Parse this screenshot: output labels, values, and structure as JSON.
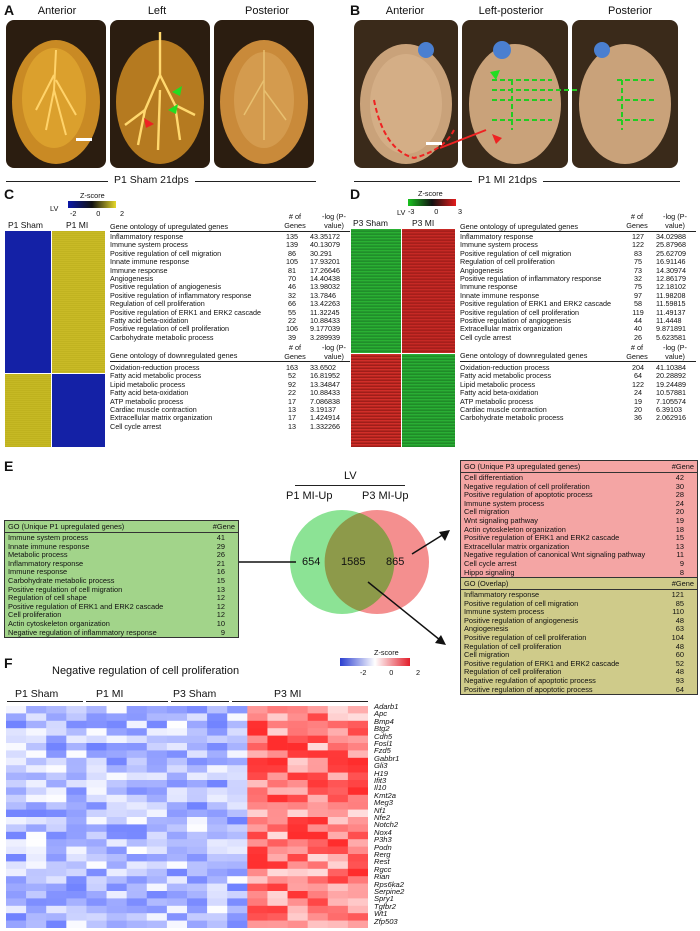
{
  "panel_letters": [
    "A",
    "B",
    "C",
    "D",
    "E",
    "F"
  ],
  "panelA": {
    "views": [
      "Anterior",
      "Left",
      "Posterior"
    ],
    "caption": "P1 Sham 21dps"
  },
  "panelB": {
    "views": [
      "Anterior",
      "Left-posterior",
      "Posterior"
    ],
    "caption": "P1 MI 21dps"
  },
  "panelC": {
    "col_labels": [
      "P1 Sham",
      "P1 MI"
    ],
    "lv": "LV",
    "zscore_title": "Z-score",
    "zscore_ticks": [
      "-2",
      "0",
      "2"
    ],
    "up_header": "Gene ontology of upregulated genes",
    "down_header": "Gene ontology of downregulated genes",
    "n_header": "# of Genes",
    "p_header": "-log (P-value)",
    "up": [
      [
        "Inflammatory response",
        "135",
        "43.35172"
      ],
      [
        "Immune system process",
        "139",
        "40.13079"
      ],
      [
        "Positive regulation of cell migration",
        "86",
        "30.291"
      ],
      [
        "Innate immune response",
        "105",
        "17.93201"
      ],
      [
        "Immune response",
        "81",
        "17.26646"
      ],
      [
        "Angiogenesis",
        "70",
        "14.40438"
      ],
      [
        "Positive regulation of angiogenesis",
        "46",
        "13.98032"
      ],
      [
        "Positive regulation of inflammatory response",
        "32",
        "13.7846"
      ],
      [
        "Regulation of cell proliferation",
        "66",
        "13.42263"
      ],
      [
        "Positive regulation of ERK1 and ERK2 cascade",
        "55",
        "11.32245"
      ],
      [
        "Fatty acid beta-oxidation",
        "22",
        "10.88433"
      ],
      [
        "Positive regulation of cell proliferation",
        "106",
        "9.177039"
      ],
      [
        "Carbohydrate metabolic process",
        "39",
        "3.289939"
      ]
    ],
    "down": [
      [
        "Oxidation-reduction process",
        "163",
        "33.6502"
      ],
      [
        "Fatty acid metabolic process",
        "52",
        "16.81952"
      ],
      [
        "Lipid metabolic process",
        "92",
        "13.34847"
      ],
      [
        "Fatty acid beta-oxidation",
        "22",
        "10.88433"
      ],
      [
        "ATP metabolic process",
        "17",
        "7.086838"
      ],
      [
        "Cardiac muscle contraction",
        "13",
        "3.19137"
      ],
      [
        "Extracellular matrix organization",
        "17",
        "1.424914"
      ],
      [
        "Cell cycle arrest",
        "13",
        "1.332266"
      ]
    ]
  },
  "panelD": {
    "col_labels": [
      "P3 Sham",
      "P3 MI"
    ],
    "lv": "LV",
    "zscore_title": "Z-score",
    "zscore_ticks": [
      "-3",
      "0",
      "3"
    ],
    "up_header": "Gene ontology of upregulated genes",
    "down_header": "Gene ontology of downregulated genes",
    "n_header": "# of Genes",
    "p_header": "-log (P-value)",
    "up": [
      [
        "Inflammatory response",
        "127",
        "34.02988"
      ],
      [
        "Immune system process",
        "122",
        "25.87968"
      ],
      [
        "Positive regulation of cell migration",
        "83",
        "25.62709"
      ],
      [
        "Regulation of cell proliferation",
        "75",
        "16.91146"
      ],
      [
        "Angiogenesis",
        "73",
        "14.30974"
      ],
      [
        "Positive regulation of inflammatory response",
        "32",
        "12.86179"
      ],
      [
        "Immune response",
        "75",
        "12.18102"
      ],
      [
        "Innate immune response",
        "97",
        "11.98208"
      ],
      [
        "Positive regulation of ERK1 and ERK2 cascade",
        "58",
        "11.59815"
      ],
      [
        "Positive regulation of cell proliferation",
        "119",
        "11.49137"
      ],
      [
        "Positive regulation of angiogenesis",
        "44",
        "11.4448"
      ],
      [
        "Extracellular matrix organization",
        "40",
        "9.871891"
      ],
      [
        "Cell cycle arrest",
        "26",
        "5.623581"
      ]
    ],
    "down": [
      [
        "Oxidation-reduction process",
        "204",
        "41.10384"
      ],
      [
        "Fatty acid metabolic process",
        "64",
        "20.28892"
      ],
      [
        "Lipid metabolic process",
        "122",
        "19.24489"
      ],
      [
        "Fatty acid beta-oxidation",
        "24",
        "10.57881"
      ],
      [
        "ATP metabolic process",
        "19",
        "7.105574"
      ],
      [
        "Cardiac muscle contraction",
        "20",
        "6.39103"
      ],
      [
        "Carbohydrate metabolic process",
        "36",
        "2.062916"
      ]
    ]
  },
  "panelE": {
    "lv": "LV",
    "left_label": "P1 MI-Up",
    "right_label": "P3 MI-Up",
    "n_left": "654",
    "n_overlap": "1585",
    "n_right": "865",
    "box_p1": {
      "title": "GO (Unique P1 upregulated genes)",
      "col": "#Gene",
      "rows": [
        [
          "Immune system process",
          "41"
        ],
        [
          "Innate immune response",
          "29"
        ],
        [
          "Metabolic process",
          "26"
        ],
        [
          "Inflammatory response",
          "21"
        ],
        [
          "Immune response",
          "16"
        ],
        [
          "Carbohydrate metabolic process",
          "15"
        ],
        [
          "Positive regulation of cell migration",
          "13"
        ],
        [
          "Regulation of cell shape",
          "12"
        ],
        [
          "Positive regulation of ERK1 and ERK2 cascade",
          "12"
        ],
        [
          "Cell proliferation",
          "12"
        ],
        [
          "Actin cytoskeleton organization",
          "10"
        ],
        [
          "Negative regulation of inflammatory response",
          "9"
        ]
      ]
    },
    "box_p3": {
      "title": "GO (Unique P3 upregulated genes)",
      "col": "#Gene",
      "rows": [
        [
          "Cell differentiation",
          "42"
        ],
        [
          "Negative regulation of cell proliferation",
          "30"
        ],
        [
          "Positive regulation of apoptotic process",
          "28"
        ],
        [
          "Immune system process",
          "24"
        ],
        [
          "Cell migration",
          "20"
        ],
        [
          "Wnt signaling pathway",
          "19"
        ],
        [
          "Actin cytoskeleton organization",
          "18"
        ],
        [
          "Positive regulation of ERK1 and ERK2 cascade",
          "15"
        ],
        [
          "Extracellular matrix organization",
          "13"
        ],
        [
          "Negative regulation of canonical Wnt signaling pathway",
          "11"
        ],
        [
          "Cell cycle arrest",
          "9"
        ],
        [
          "Hippo signaling",
          "8"
        ]
      ]
    },
    "box_overlap": {
      "title": "GO (Overlap)",
      "col": "#Gene",
      "rows": [
        [
          "Inflammatory response",
          "121"
        ],
        [
          "Positive regulation of cell migration",
          "85"
        ],
        [
          "Immune system process",
          "110"
        ],
        [
          "Positive regulation of angiogenesis",
          "48"
        ],
        [
          "Angiogenesis",
          "63"
        ],
        [
          "Positive regulation of cell proliferation",
          "104"
        ],
        [
          "Regulation of cell proliferation",
          "48"
        ],
        [
          "Cell migration",
          "60"
        ],
        [
          "Positive regulation of ERK1 and ERK2 cascade",
          "52"
        ],
        [
          "Regulation of cell proliferation",
          "48"
        ],
        [
          "Negative regulation of apoptotic process",
          "93"
        ],
        [
          "Positive regulation of apoptotic process",
          "64"
        ]
      ]
    }
  },
  "panelF": {
    "title": "Negative regulation of cell proliferation",
    "zscore_title": "Z-score",
    "zscore_ticks": [
      "-2",
      "0",
      "2"
    ],
    "groups": [
      "P1 Sham",
      "P1 MI",
      "P3 Sham",
      "P3 MI"
    ],
    "genes": [
      "Adarb1",
      "Apc",
      "Bmp4",
      "Btg2",
      "Cdh5",
      "Fosl1",
      "Fzd5",
      "Gabbr1",
      "Gli3",
      "H19",
      "Ifit3",
      "Il10",
      "Kmt2a",
      "Meg3",
      "Nf1",
      "Nfe2",
      "Notch2",
      "Nox4",
      "P3h3",
      "Podn",
      "Rerg",
      "Rest",
      "Rgcc",
      "Rian",
      "Rps6ka2",
      "Serpine2",
      "Spry1",
      "Tgfbr2",
      "Wt1",
      "Zfp503"
    ]
  }
}
